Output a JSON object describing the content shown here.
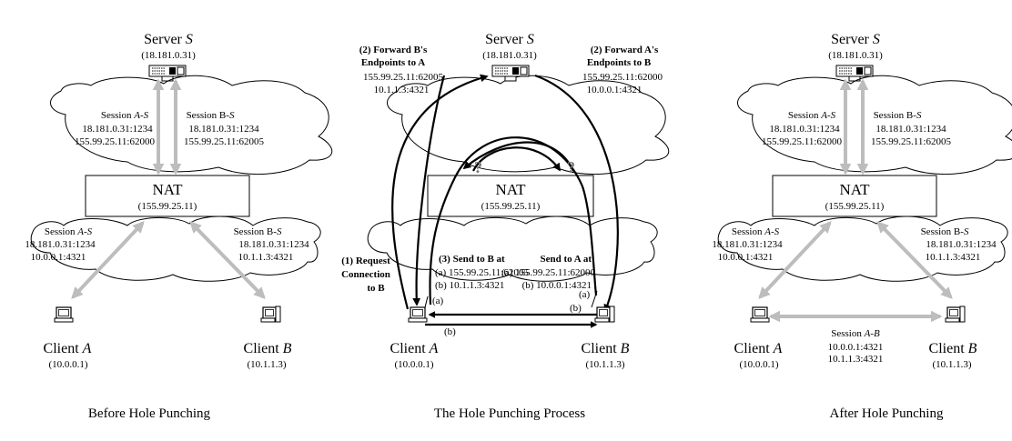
{
  "panels": [
    {
      "caption": "Before Hole Punching",
      "server": {
        "label": "Server",
        "italic": "S",
        "ip": "(18.181.0.31)"
      },
      "nat": {
        "label": "NAT",
        "ip": "(155.99.25.11)"
      },
      "session_as_top": {
        "prefix": "Session ",
        "italic": "A-S",
        "lines": [
          "18.181.0.31:1234",
          "155.99.25.11:62000"
        ]
      },
      "session_bs_top": {
        "prefix": "Session B-",
        "italic": "S",
        "lines": [
          "18.181.0.31:1234",
          "155.99.25.11:62005"
        ]
      },
      "session_as_bottom": {
        "prefix": "Session ",
        "italic": "A-S",
        "lines": [
          "18.181.0.31:1234",
          "10.0.0.1:4321"
        ]
      },
      "session_bs_bottom": {
        "prefix": "Session B-",
        "italic": "S",
        "lines": [
          "18.181.0.31:1234",
          "10.1.1.3:4321"
        ]
      },
      "client_a": {
        "label": "Client",
        "italic": "A",
        "ip": "(10.0.0.1)"
      },
      "client_b": {
        "label": "Client",
        "italic": "B",
        "ip": "(10.1.1.3)"
      }
    },
    {
      "caption": "The Hole Punching Process",
      "server": {
        "label": "Server",
        "italic": "S",
        "ip": "(18.181.0.31)"
      },
      "nat": {
        "label": "NAT",
        "ip": "(155.99.25.11)"
      },
      "forward_b_to_a": [
        "(2) Forward B's",
        "Endpoints to A"
      ],
      "forward_b_addrs": [
        "155.99.25.11:62005",
        "10.1.1.3:4321"
      ],
      "forward_a_to_b": [
        "(2) Forward A's",
        "Endpoints to B"
      ],
      "forward_a_addrs": [
        "155.99.25.11:62000",
        "10.0.0.1:4321"
      ],
      "request": [
        "(1) Request",
        "Connection",
        "to B"
      ],
      "send_to_b": {
        "title": "(3) Send to B at",
        "lines": [
          "(a) 155.99.25.11:62005",
          "(b) 10.1.1.3:4321"
        ]
      },
      "send_to_a": {
        "title": "Send to A at",
        "lines": [
          "(a) 155.99.25.11:62000",
          "(b) 10.0.0.1:4321"
        ]
      },
      "marks": {
        "a": "(a)",
        "b": "(b)",
        "q": "?"
      },
      "client_a": {
        "label": "Client",
        "italic": "A",
        "ip": "(10.0.0.1)"
      },
      "client_b": {
        "label": "Client",
        "italic": "B",
        "ip": "(10.1.1.3)"
      }
    },
    {
      "caption": "After Hole Punching",
      "server": {
        "label": "Server",
        "italic": "S",
        "ip": "(18.181.0.31)"
      },
      "nat": {
        "label": "NAT",
        "ip": "(155.99.25.11)"
      },
      "session_as_top": {
        "prefix": "Session ",
        "italic": "A-S",
        "lines": [
          "18.181.0.31:1234",
          "155.99.25.11:62000"
        ]
      },
      "session_bs_top": {
        "prefix": "Session B-",
        "italic": "S",
        "lines": [
          "18.181.0.31:1234",
          "155.99.25.11:62005"
        ]
      },
      "session_as_bottom": {
        "prefix": "Session ",
        "italic": "A-S",
        "lines": [
          "18.181.0.31:1234",
          "10.0.0.1:4321"
        ]
      },
      "session_bs_bottom": {
        "prefix": "Session B-",
        "italic": "S",
        "lines": [
          "18.181.0.31:1234",
          "10.1.1.3:4321"
        ]
      },
      "session_ab": {
        "prefix": "Session ",
        "italic": "A-B",
        "lines": [
          "10.0.0.1:4321",
          "10.1.1.3:4321"
        ]
      },
      "client_a": {
        "label": "Client",
        "italic": "A",
        "ip": "(10.0.0.1)"
      },
      "client_b": {
        "label": "Client",
        "italic": "B",
        "ip": "(10.1.1.3)"
      }
    }
  ]
}
